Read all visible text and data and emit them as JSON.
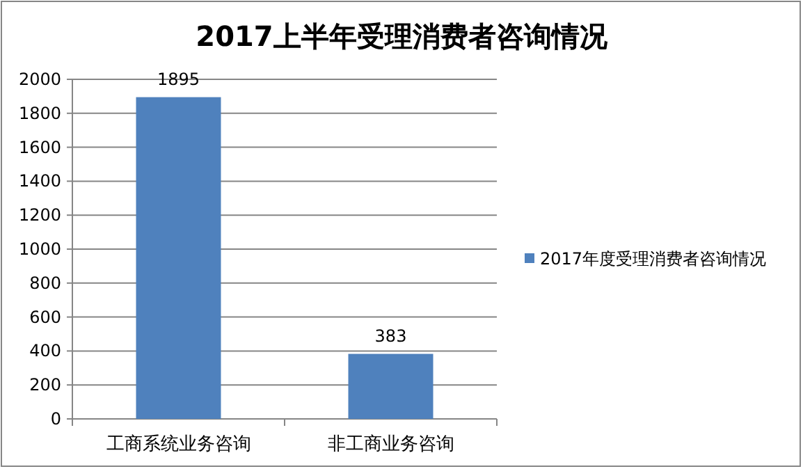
{
  "chart_data": {
    "type": "bar",
    "title": "2017上半年受理消费者咨询情况",
    "categories": [
      "工商系统业务咨询",
      "非工商业务咨询"
    ],
    "series": [
      {
        "name": "2017年度受理消费者咨询情况",
        "color": "#4f81bd",
        "values": [
          1895,
          383
        ]
      }
    ],
    "ylim": [
      0,
      2000
    ],
    "yticks": [
      0,
      200,
      400,
      600,
      800,
      1000,
      1200,
      1400,
      1600,
      1800,
      2000
    ],
    "grid": "y",
    "legend": "right",
    "data_labels": true
  }
}
